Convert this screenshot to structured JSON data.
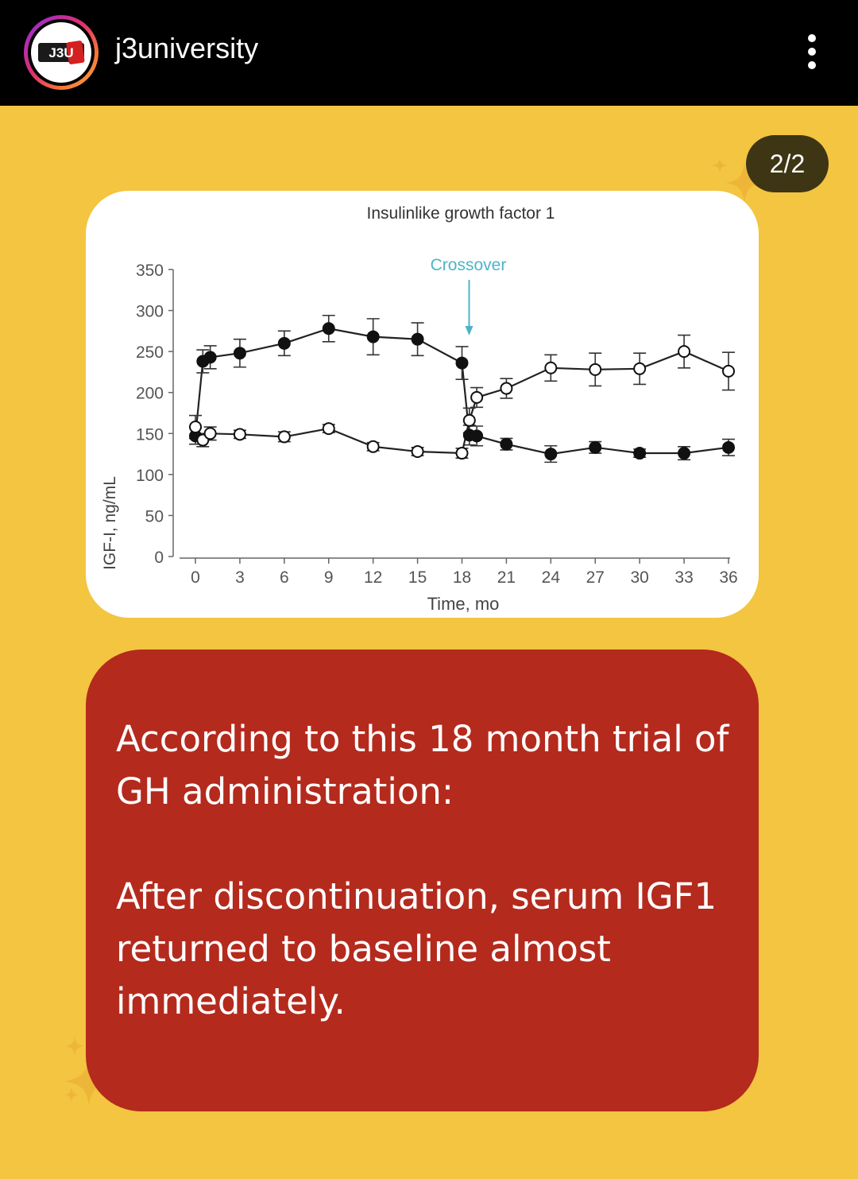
{
  "header": {
    "username": "j3university",
    "avatar_text": "J3U"
  },
  "slide_counter": "2/2",
  "chart_data": {
    "type": "line",
    "title": "Insulinlike growth factor 1",
    "xlabel": "Time, mo",
    "ylabel": "IGF-I, ng/mL",
    "xlim": [
      0,
      36
    ],
    "ylim": [
      0,
      350
    ],
    "xticks": [
      0,
      3,
      6,
      9,
      12,
      15,
      18,
      21,
      24,
      27,
      30,
      33,
      36
    ],
    "yticks": [
      0,
      50,
      100,
      150,
      200,
      250,
      300,
      350
    ],
    "annotation": {
      "text": "Crossover",
      "x": 18
    },
    "series": [
      {
        "marker": "filled",
        "points": [
          {
            "x": 0,
            "y": 147,
            "err": 10
          },
          {
            "x": 0.5,
            "y": 238,
            "err": 14
          },
          {
            "x": 1,
            "y": 243,
            "err": 14
          },
          {
            "x": 3,
            "y": 248,
            "err": 17
          },
          {
            "x": 6,
            "y": 260,
            "err": 15
          },
          {
            "x": 9,
            "y": 278,
            "err": 16
          },
          {
            "x": 12,
            "y": 268,
            "err": 22
          },
          {
            "x": 15,
            "y": 265,
            "err": 20
          },
          {
            "x": 18,
            "y": 236,
            "err": 20
          },
          {
            "x": 18.5,
            "y": 148,
            "err": 12
          },
          {
            "x": 19,
            "y": 147,
            "err": 12
          },
          {
            "x": 21,
            "y": 137,
            "err": 7
          },
          {
            "x": 24,
            "y": 125,
            "err": 10
          },
          {
            "x": 27,
            "y": 133,
            "err": 7
          },
          {
            "x": 30,
            "y": 126,
            "err": 5
          },
          {
            "x": 33,
            "y": 126,
            "err": 8
          },
          {
            "x": 36,
            "y": 133,
            "err": 10
          }
        ]
      },
      {
        "marker": "open",
        "points": [
          {
            "x": 0,
            "y": 158,
            "err": 14
          },
          {
            "x": 0.5,
            "y": 142,
            "err": 8
          },
          {
            "x": 1,
            "y": 150,
            "err": 8
          },
          {
            "x": 3,
            "y": 149,
            "err": 5
          },
          {
            "x": 6,
            "y": 146,
            "err": 6
          },
          {
            "x": 9,
            "y": 156,
            "err": 5
          },
          {
            "x": 12,
            "y": 134,
            "err": 5
          },
          {
            "x": 15,
            "y": 128,
            "err": 5
          },
          {
            "x": 18,
            "y": 126,
            "err": 6
          },
          {
            "x": 18.5,
            "y": 166,
            "err": 15
          },
          {
            "x": 19,
            "y": 194,
            "err": 12
          },
          {
            "x": 21,
            "y": 205,
            "err": 12
          },
          {
            "x": 24,
            "y": 230,
            "err": 16
          },
          {
            "x": 27,
            "y": 228,
            "err": 20
          },
          {
            "x": 30,
            "y": 229,
            "err": 19
          },
          {
            "x": 33,
            "y": 250,
            "err": 20
          },
          {
            "x": 36,
            "y": 226,
            "err": 23
          }
        ]
      }
    ]
  },
  "caption": "According to this 18 month trial of GH administration:\n\nAfter discontinuation, serum IGF1 returned to baseline almost immediately.",
  "colors": {
    "background": "#F3C540",
    "card_red": "#B42A1D",
    "counter_bg": "#3D3514",
    "crossover": "#4FB3C8"
  },
  "icons": {
    "menu": "more-vertical-icon",
    "sparkle": "sparkle-icon"
  }
}
